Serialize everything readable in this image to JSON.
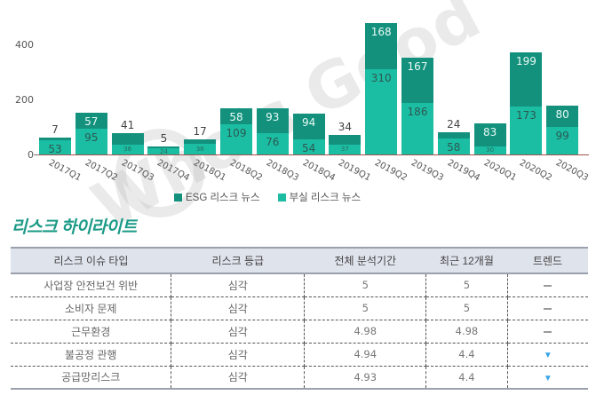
{
  "chart_data": {
    "type": "bar",
    "stacked": true,
    "title": "",
    "xlabel": "",
    "ylabel": "",
    "ylim": [
      0,
      480
    ],
    "yticks": [
      0,
      200,
      400
    ],
    "grid": false,
    "legend_position": "bottom",
    "categories": [
      "2017Q1",
      "2017Q2",
      "2017Q3",
      "2017Q4",
      "2018Q1",
      "2018Q2",
      "2018Q3",
      "2018Q4",
      "2019Q1",
      "2019Q2",
      "2019Q3",
      "2019Q4",
      "2020Q1",
      "2020Q2",
      "2020Q3"
    ],
    "series": [
      {
        "name": "부실 리스크 뉴스",
        "color": "#1bbda3",
        "values": [
          53,
          95,
          36,
          24,
          38,
          109,
          76,
          54,
          37,
          310,
          186,
          58,
          30,
          173,
          99
        ]
      },
      {
        "name": "ESG 리스크 뉴스",
        "color": "#13917d",
        "values": [
          7,
          57,
          41,
          5,
          17,
          58,
          93,
          94,
          34,
          168,
          167,
          24,
          83,
          199,
          80
        ]
      }
    ]
  },
  "chart": {
    "yticks": [
      "400",
      "200",
      "0"
    ],
    "legend": [
      {
        "label": "ESG 리스크 뉴스",
        "color": "#13917d"
      },
      {
        "label": "부실 리스크 뉴스",
        "color": "#1bbda3"
      }
    ],
    "watermark": "Who's Good"
  },
  "highlight": {
    "title": "리스크 하이라이트",
    "columns": [
      "리스크 이슈 타입",
      "리스크 등급",
      "전체 분석기간",
      "최근 12개월",
      "트렌드"
    ],
    "rows": [
      {
        "type": "사업장 안전보건 위반",
        "grade": "심각",
        "total": "5",
        "recent": "5",
        "trend": "flat"
      },
      {
        "type": "소비자 문제",
        "grade": "심각",
        "total": "5",
        "recent": "5",
        "trend": "flat"
      },
      {
        "type": "근무환경",
        "grade": "심각",
        "total": "4.98",
        "recent": "4.98",
        "trend": "flat"
      },
      {
        "type": "불공정 관행",
        "grade": "심각",
        "total": "4.94",
        "recent": "4.4",
        "trend": "down"
      },
      {
        "type": "공급망리스크",
        "grade": "심각",
        "total": "4.93",
        "recent": "4.4",
        "trend": "down"
      }
    ],
    "trend_symbols": {
      "flat": "",
      "down": "▼"
    }
  },
  "colors": {
    "accent": "#1a9a86",
    "esg": "#13917d",
    "bs": "#1bbda3",
    "trend_down": "#3aa4e8",
    "header_bg": "#dfe3ec"
  }
}
